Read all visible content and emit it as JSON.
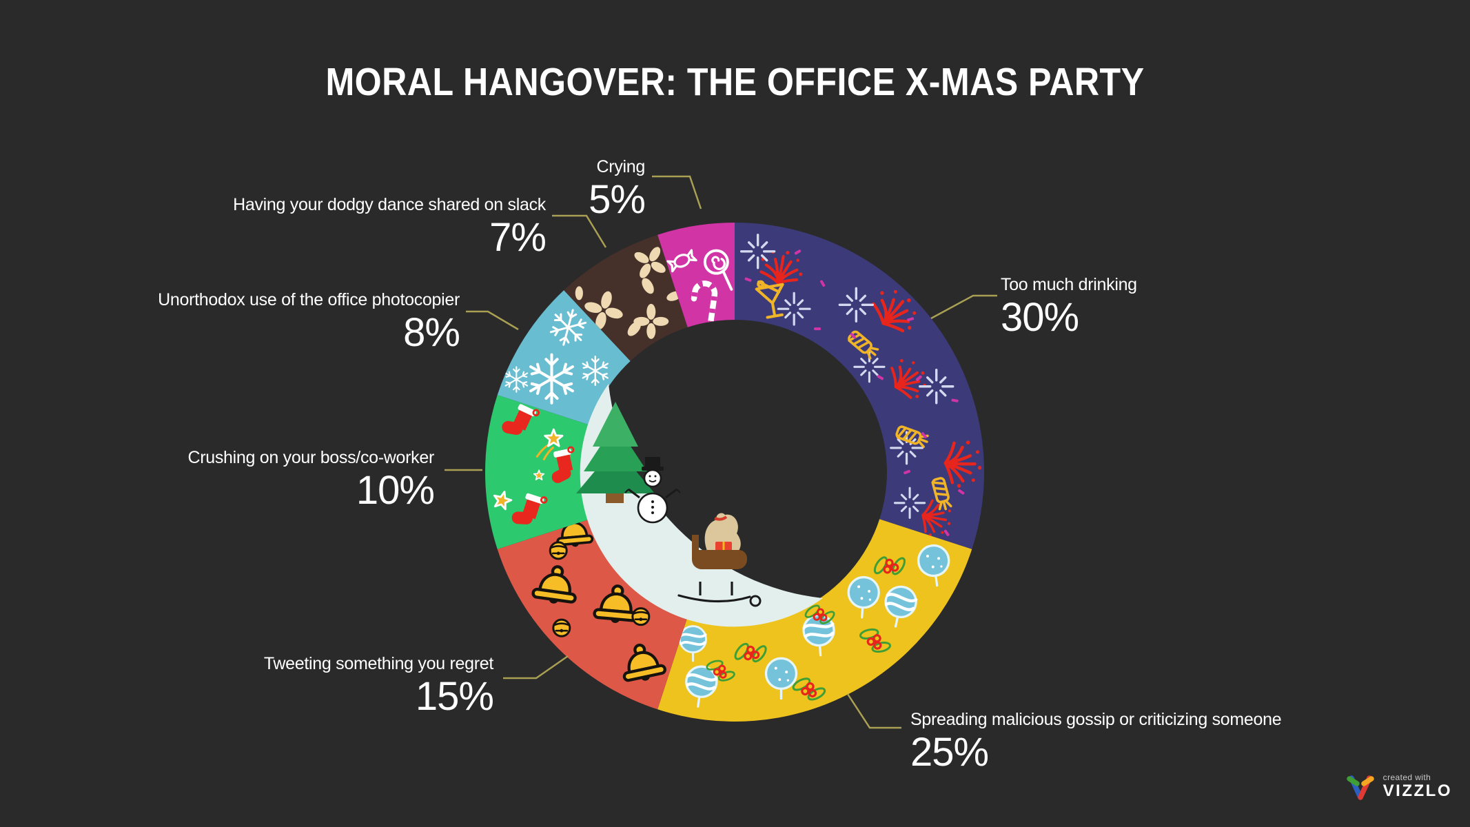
{
  "header": {
    "title": "MORAL HANGOVER: THE OFFICE X-MAS PARTY"
  },
  "chart_data": {
    "type": "pie",
    "style": "donut",
    "title": "MORAL HANGOVER: THE OFFICE X-MAS PARTY",
    "unit": "%",
    "direction": "clockwise",
    "start_angle_deg": 0,
    "legend_position": "callout-labels",
    "center_decoration": "christmas-scene (tree, snowman, sleigh on snow hill)",
    "segments": [
      {
        "id": "too-much-drinking",
        "label": "Too much drinking",
        "value": 30,
        "pct_label": "30%",
        "color": "#3c3a78",
        "icons": [
          "firework-icon",
          "sparkle-icon",
          "cracker-icon",
          "confetti-icon",
          "martini-icon"
        ]
      },
      {
        "id": "gossip",
        "label": "Spreading malicious gossip or criticizing someone",
        "value": 25,
        "pct_label": "25%",
        "color": "#eec31d",
        "icons": [
          "bauble-dot-icon",
          "bauble-wave-icon",
          "holly-icon"
        ]
      },
      {
        "id": "tweeting",
        "label": "Tweeting something you regret",
        "value": 15,
        "pct_label": "15%",
        "color": "#dd5847",
        "icons": [
          "bell-icon",
          "jinglebell-icon"
        ]
      },
      {
        "id": "crushing",
        "label": "Crushing on your boss/co-worker",
        "value": 10,
        "pct_label": "10%",
        "color": "#2dc96e",
        "icons": [
          "stocking-icon",
          "star-icon",
          "shooting-star-icon"
        ]
      },
      {
        "id": "photocopier",
        "label": "Unorthodox use of the office photocopier",
        "value": 8,
        "pct_label": "8%",
        "color": "#69bdd0",
        "icons": [
          "snowflake-icon"
        ]
      },
      {
        "id": "dodgy-dance",
        "label": "Having your dodgy dance shared on slack",
        "value": 7,
        "pct_label": "7%",
        "color": "#45302a",
        "icons": [
          "petal-cluster-icon",
          "petal-icon"
        ]
      },
      {
        "id": "crying",
        "label": "Crying",
        "value": 5,
        "pct_label": "5%",
        "color": "#d134a5",
        "icons": [
          "candy-icon",
          "lollipop-icon",
          "candycane-icon"
        ]
      }
    ]
  },
  "colors": {
    "background": "#2a2a2a",
    "label_text": "#ffffff",
    "leader_line": "#a9a054",
    "snow_hill": "#e2efec"
  },
  "badge": {
    "small_text": "created with",
    "brand": "VIZZLO"
  }
}
